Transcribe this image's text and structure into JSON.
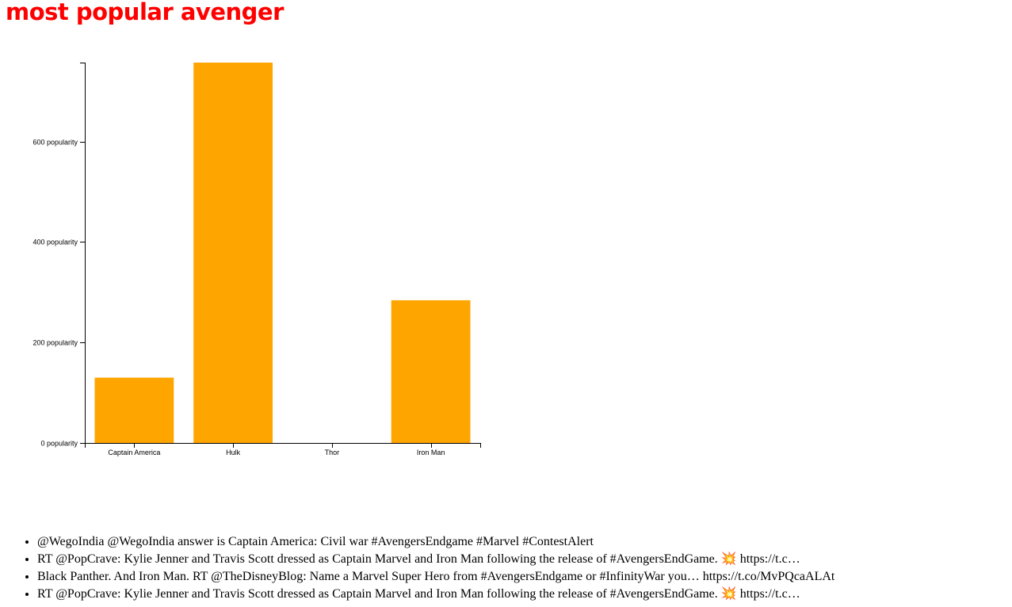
{
  "page": {
    "title": "most popular avenger"
  },
  "chart_data": {
    "type": "bar",
    "categories": [
      "Captain America",
      "Hulk",
      "Thor",
      "Iron Man"
    ],
    "values": [
      130,
      757,
      0,
      284
    ],
    "ylim": [
      0,
      757
    ],
    "yticks": [
      0,
      200,
      400,
      600
    ],
    "ytick_suffix": " popularity",
    "bar_color": "#ffa500",
    "grid": false,
    "title": "",
    "xlabel": "",
    "ylabel": ""
  },
  "tweets": [
    "@WegoIndia @WegoIndia answer is Captain America: Civil war #AvengersEndgame #Marvel #ContestAlert",
    "RT @PopCrave: Kylie Jenner and Travis Scott dressed as Captain Marvel and Iron Man following the release of #AvengersEndGame. 💥 https://t.c…",
    "Black Panther. And Iron Man. RT @TheDisneyBlog: Name a Marvel Super Hero from #AvengersEndgame or #InfinityWar you… https://t.co/MvPQcaALAt",
    "RT @PopCrave: Kylie Jenner and Travis Scott dressed as Captain Marvel and Iron Man following the release of #AvengersEndGame. 💥 https://t.c…"
  ]
}
